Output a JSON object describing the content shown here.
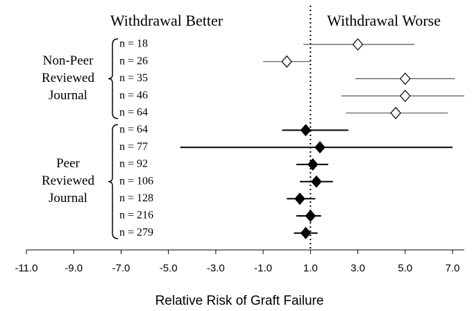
{
  "chart_data": {
    "type": "forest",
    "header_left": "Withdrawal Better",
    "header_right": "Withdrawal Worse",
    "xlabel": "Relative Risk of Graft Failure",
    "xlim": [
      -11,
      7.5
    ],
    "xticks": [
      {
        "value": -11,
        "label": "-11.0"
      },
      {
        "value": -9,
        "label": "-9.0"
      },
      {
        "value": -7,
        "label": "-7.0"
      },
      {
        "value": -5,
        "label": "-5.0"
      },
      {
        "value": -3,
        "label": "-3.0"
      },
      {
        "value": -1,
        "label": "-1.0"
      },
      {
        "value": 1,
        "label": "1.0"
      },
      {
        "value": 3,
        "label": "3.0"
      },
      {
        "value": 5,
        "label": "5.0"
      },
      {
        "value": 7,
        "label": "7.0"
      }
    ],
    "reference": 1,
    "groups": [
      {
        "label_lines": [
          "Non-Peer",
          "Reviewed",
          "Journal"
        ],
        "marker": "open",
        "line_color": "#555555",
        "rows": [
          "n = 18",
          "n = 26",
          "n = 35",
          "n = 46",
          "n = 64"
        ],
        "estimate": [
          3.0,
          0.0,
          5.0,
          5.0,
          4.6
        ],
        "low": [
          0.7,
          -1.0,
          2.9,
          2.3,
          2.5
        ],
        "high": [
          5.4,
          1.0,
          7.1,
          7.5,
          6.8
        ]
      },
      {
        "label_lines": [
          "Peer",
          "Reviewed",
          "Journal"
        ],
        "marker": "filled",
        "line_color": "#000000",
        "rows": [
          "n = 64",
          "n = 77",
          "n = 92",
          "n = 106",
          "n = 128",
          "n = 216",
          "n = 279"
        ],
        "estimate": [
          0.8,
          1.4,
          1.1,
          1.25,
          0.55,
          1.0,
          0.8
        ],
        "low": [
          -0.2,
          -4.5,
          0.4,
          0.55,
          0.0,
          0.4,
          0.3
        ],
        "high": [
          2.6,
          7.0,
          1.75,
          1.95,
          1.2,
          1.45,
          1.3
        ]
      }
    ]
  }
}
